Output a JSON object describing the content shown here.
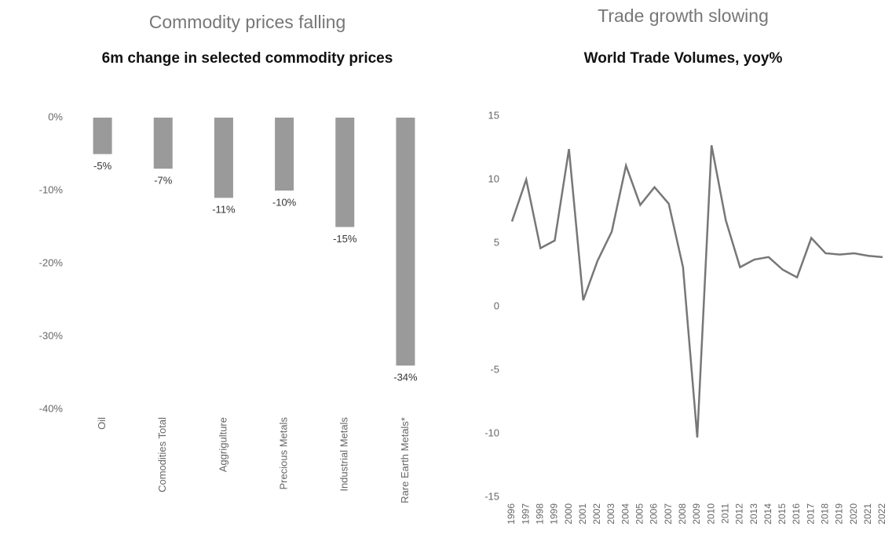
{
  "chart_data": [
    {
      "type": "bar",
      "title": "Commodity prices falling",
      "subtitle": "6m change in selected commodity prices",
      "categories": [
        "Oil",
        "Comodities Total",
        "Aggrigulture",
        "Precious Metals",
        "Industrial Metals",
        "Rare Earth Metals*"
      ],
      "values": [
        -5,
        -7,
        -11,
        -10,
        -15,
        -34
      ],
      "value_labels": [
        "-5%",
        "-7%",
        "-11%",
        "-10%",
        "-15%",
        "-34%"
      ],
      "color": "#9a9a9a",
      "ylim": [
        -40,
        0
      ],
      "yticks": [
        {
          "value": 0,
          "label": "0%"
        },
        {
          "value": -10,
          "label": "-10%"
        },
        {
          "value": -20,
          "label": "-20%"
        },
        {
          "value": -30,
          "label": "-30%"
        },
        {
          "value": -40,
          "label": "-40%"
        }
      ]
    },
    {
      "type": "line",
      "title": "Trade growth slowing",
      "subtitle": "World Trade Volumes, yoy%",
      "categories": [
        "1996",
        "1997",
        "1998",
        "1999",
        "2000",
        "2001",
        "2002",
        "2003",
        "2004",
        "2005",
        "2006",
        "2007",
        "2008",
        "2009",
        "2010",
        "2011",
        "2012",
        "2013",
        "2014",
        "2015",
        "2016",
        "2017",
        "2018",
        "2019",
        "2020",
        "2021",
        "2022"
      ],
      "values": [
        6.7,
        10,
        4.6,
        5.2,
        12.4,
        0.5,
        3.6,
        5.9,
        11.1,
        8,
        9.4,
        8.1,
        3.1,
        -10.3,
        12.7,
        6.8,
        3.1,
        3.7,
        3.9,
        2.9,
        2.3,
        5.4,
        4.2,
        4.1,
        4.2,
        4.0,
        3.9
      ],
      "color": "#777777",
      "ylim": [
        -15,
        15
      ],
      "yticks": [
        -15,
        -10,
        -5,
        0,
        5,
        10,
        15
      ]
    }
  ]
}
